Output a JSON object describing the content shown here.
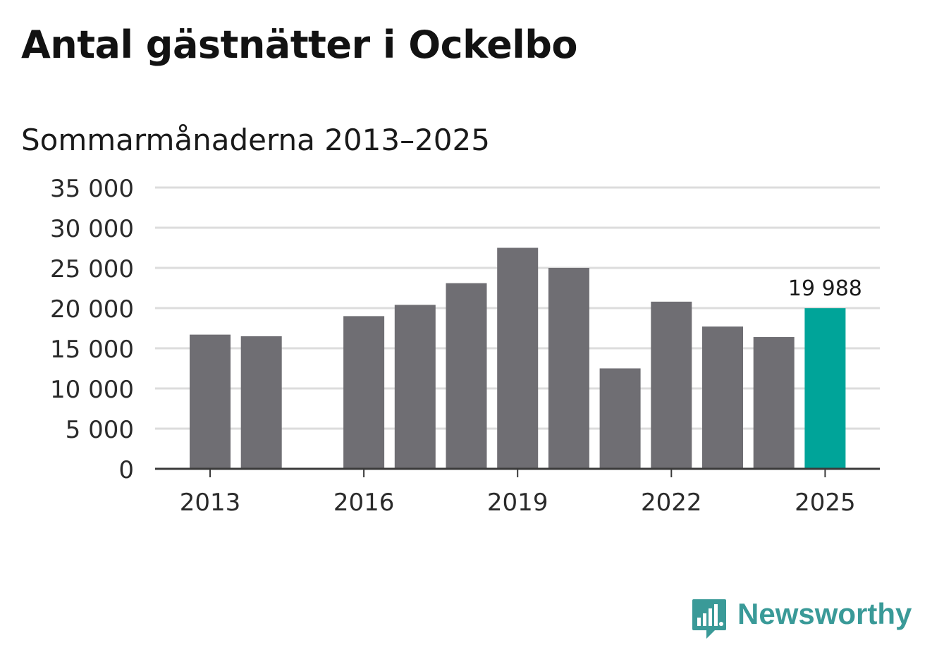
{
  "chart_data": {
    "type": "bar",
    "title": "Antal gästnätter i Ockelbo",
    "subtitle": "Sommarmånaderna 2013–2025",
    "categories": [
      "2013",
      "2014",
      "2015",
      "2016",
      "2017",
      "2018",
      "2019",
      "2020",
      "2021",
      "2022",
      "2023",
      "2024",
      "2025"
    ],
    "values": [
      16700,
      16500,
      null,
      19000,
      20400,
      23100,
      27500,
      25000,
      12500,
      20800,
      17700,
      16400,
      19988
    ],
    "highlight_index": 12,
    "data_labels": [
      {
        "index": 12,
        "text": "19 988"
      }
    ],
    "x_tick_labels": [
      "2013",
      "2016",
      "2019",
      "2022",
      "2025"
    ],
    "y_ticks": [
      0,
      5000,
      10000,
      15000,
      20000,
      25000,
      30000,
      35000
    ],
    "y_tick_labels": [
      "0",
      "5 000",
      "10 000",
      "15 000",
      "20 000",
      "25 000",
      "30 000",
      "35 000"
    ],
    "ylim": [
      0,
      35000
    ],
    "xlabel": "",
    "ylabel": "",
    "grid": true,
    "colors": {
      "bar": "#6f6e73",
      "highlight": "#00a499",
      "grid": "#dcdcdc",
      "axis": "#3a3a3a"
    }
  },
  "brand": {
    "name": "Newsworthy",
    "color": "#3a9a98"
  }
}
